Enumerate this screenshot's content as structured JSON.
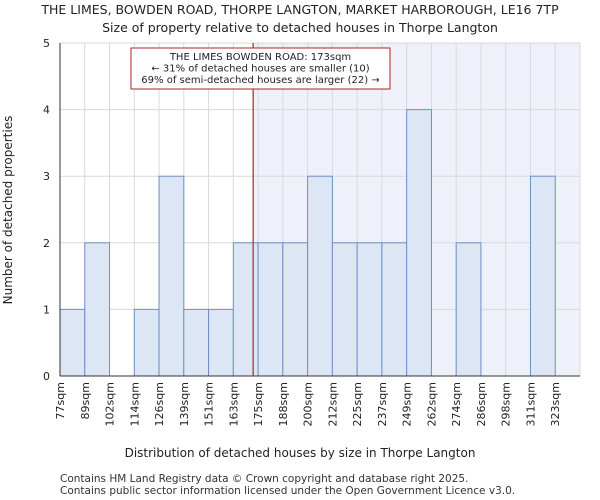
{
  "chart_data": {
    "type": "bar",
    "title": "THE LIMES, BOWDEN ROAD, THORPE LANGTON, MARKET HARBOROUGH, LE16 7TP",
    "subtitle": "Size of property relative to detached houses in Thorpe Langton",
    "xlabel": "Distribution of detached houses by size in Thorpe Langton",
    "ylabel": "Number of detached properties",
    "categories": [
      "77sqm",
      "89sqm",
      "102sqm",
      "114sqm",
      "126sqm",
      "139sqm",
      "151sqm",
      "163sqm",
      "175sqm",
      "188sqm",
      "200sqm",
      "212sqm",
      "225sqm",
      "237sqm",
      "249sqm",
      "262sqm",
      "274sqm",
      "286sqm",
      "298sqm",
      "311sqm",
      "323sqm"
    ],
    "values": [
      1,
      2,
      0,
      1,
      3,
      1,
      1,
      2,
      2,
      2,
      3,
      2,
      2,
      2,
      4,
      0,
      2,
      0,
      0,
      3,
      0
    ],
    "ylim": [
      0,
      5
    ],
    "yticks": [
      0,
      1,
      2,
      3,
      4,
      5
    ],
    "grid": true,
    "marker": {
      "value_sqm": 173,
      "position_index": 7.8,
      "color": "#b22222",
      "annotation": [
        "THE LIMES BOWDEN ROAD: 173sqm",
        "← 31% of detached houses are smaller (10)",
        "69% of semi-detached houses are larger (22) →"
      ]
    },
    "colors": {
      "bar_fill": "#dce6f4",
      "bar_stroke": "#6f8fc4",
      "highlight_region": "#eef1fa",
      "grid": "#d9d9d9"
    }
  },
  "footer": {
    "line1": "Contains HM Land Registry data © Crown copyright and database right 2025.",
    "line2": "Contains public sector information licensed under the Open Government Licence v3.0."
  }
}
